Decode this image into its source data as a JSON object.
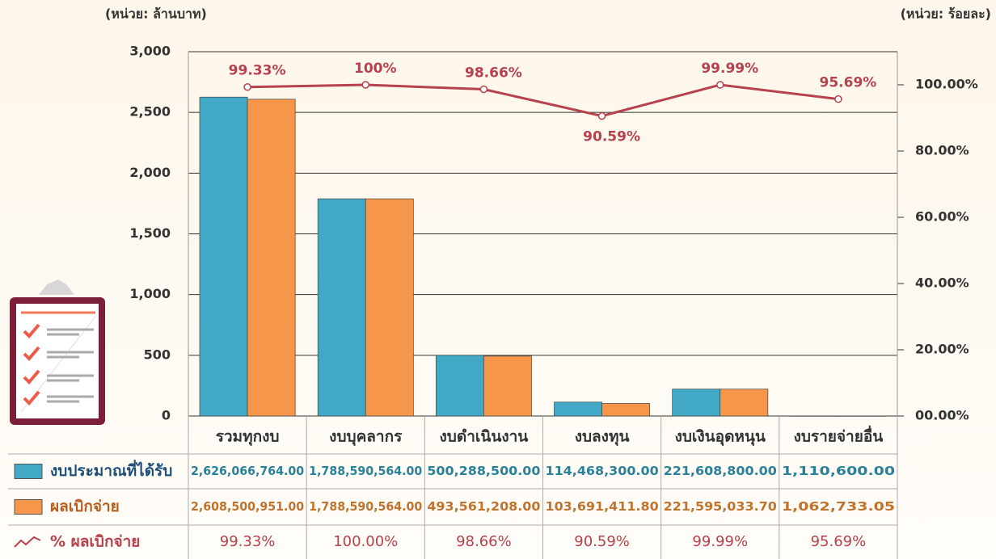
{
  "chart_data": {
    "type": "bar",
    "y_unit": "(หน่วย: ล้านบาท)",
    "y2_unit": "(หน่วย: ร้อยละ)",
    "categories": [
      "รวมทุกงบ",
      "งบบุคลากร",
      "งบดำเนินงาน",
      "งบลงทุน",
      "งบเงินอุดหนุน",
      "งบรายจ่ายอื่น"
    ],
    "ylim": [
      0,
      3000
    ],
    "yticks": [
      0,
      500,
      {
        "value": 1000,
        "label": "1,000"
      },
      {
        "value": 1500,
        "label": "1,500"
      },
      {
        "value": 2000,
        "label": "2,000"
      },
      {
        "value": 2500,
        "label": "2,500"
      },
      {
        "value": 3000,
        "label": "3,000"
      }
    ],
    "y2lim": [
      0,
      110
    ],
    "y2ticks": [
      {
        "value": 0,
        "label": "00.00%"
      },
      {
        "value": 20,
        "label": "20.00%"
      },
      {
        "value": 40,
        "label": "40.00%"
      },
      {
        "value": 60,
        "label": "60.00%"
      },
      {
        "value": 80,
        "label": "80.00%"
      },
      {
        "value": 100,
        "label": "100.00%"
      }
    ],
    "grid": true,
    "series": [
      {
        "name": "งบประมาณที่ได้รับ",
        "type": "bar",
        "color": "#41a9c6",
        "values": [
          2626.066764,
          1788.590564,
          500.2885,
          114.4683,
          221.6088,
          1.1106
        ],
        "value_labels": [
          "2,626,066,764.00",
          "1,788,590,564.00",
          "500,288,500.00",
          "114,468,300.00",
          "221,608,800.00",
          "1,110,600.00"
        ]
      },
      {
        "name": "ผลเบิกจ่าย",
        "type": "bar",
        "color": "#f5964a",
        "values": [
          2608.500951,
          1788.590564,
          493.561208,
          103.6914118,
          221.5950337,
          1.06273305
        ],
        "value_labels": [
          "2,608,500,951.00",
          "1,788,590,564.00",
          "493,561,208.00",
          "103,691,411.80",
          "221,595,033.70",
          "1,062,733.05"
        ]
      },
      {
        "name": "% ผลเบิกจ่าย",
        "type": "line",
        "axis": "y2",
        "color": "#b7414c",
        "values": [
          99.33,
          100,
          98.66,
          90.59,
          99.99,
          95.69
        ],
        "value_labels": [
          "99.33%",
          "100%",
          "98.66%",
          "90.59%",
          "99.99%",
          "95.69%"
        ],
        "table_labels": [
          "99.33%",
          "100.00%",
          "98.66%",
          "90.59%",
          "99.99%",
          "95.69%"
        ]
      }
    ]
  }
}
